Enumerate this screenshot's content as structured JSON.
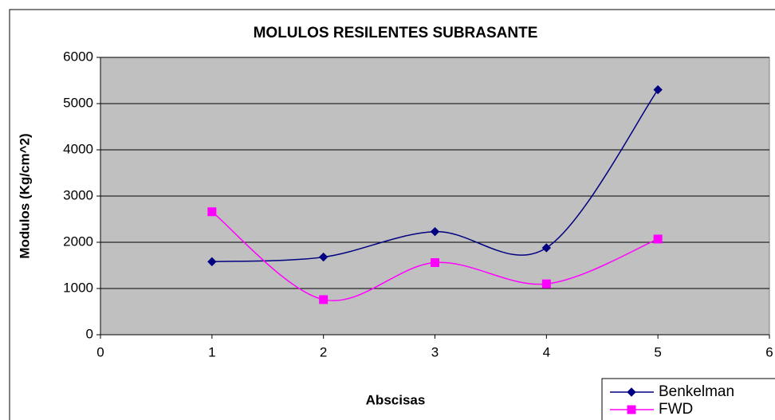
{
  "chart_data": {
    "type": "line",
    "title": "MOLULOS RESILENTES SUBRASANTE",
    "x_label": "Abscisas",
    "y_label": "Modulos (Kg/cm^2)",
    "x": [
      1,
      2,
      3,
      4,
      5
    ],
    "series": [
      {
        "name": "Benkelman",
        "color": "#000080",
        "marker": "diamond",
        "values": [
          1580,
          1680,
          2230,
          1880,
          5300
        ]
      },
      {
        "name": "FWD",
        "color": "#ff00ff",
        "marker": "square",
        "values": [
          2660,
          760,
          1560,
          1100,
          2070
        ]
      }
    ],
    "xlim": [
      0,
      6
    ],
    "xticks": [
      0,
      1,
      2,
      3,
      4,
      5,
      6
    ],
    "ylim": [
      0,
      6000
    ],
    "yticks": [
      0,
      1000,
      2000,
      3000,
      4000,
      5000,
      6000
    ],
    "grid": true,
    "smooth": true,
    "legend": "lower right",
    "plot_background": "#c0c0c0"
  }
}
